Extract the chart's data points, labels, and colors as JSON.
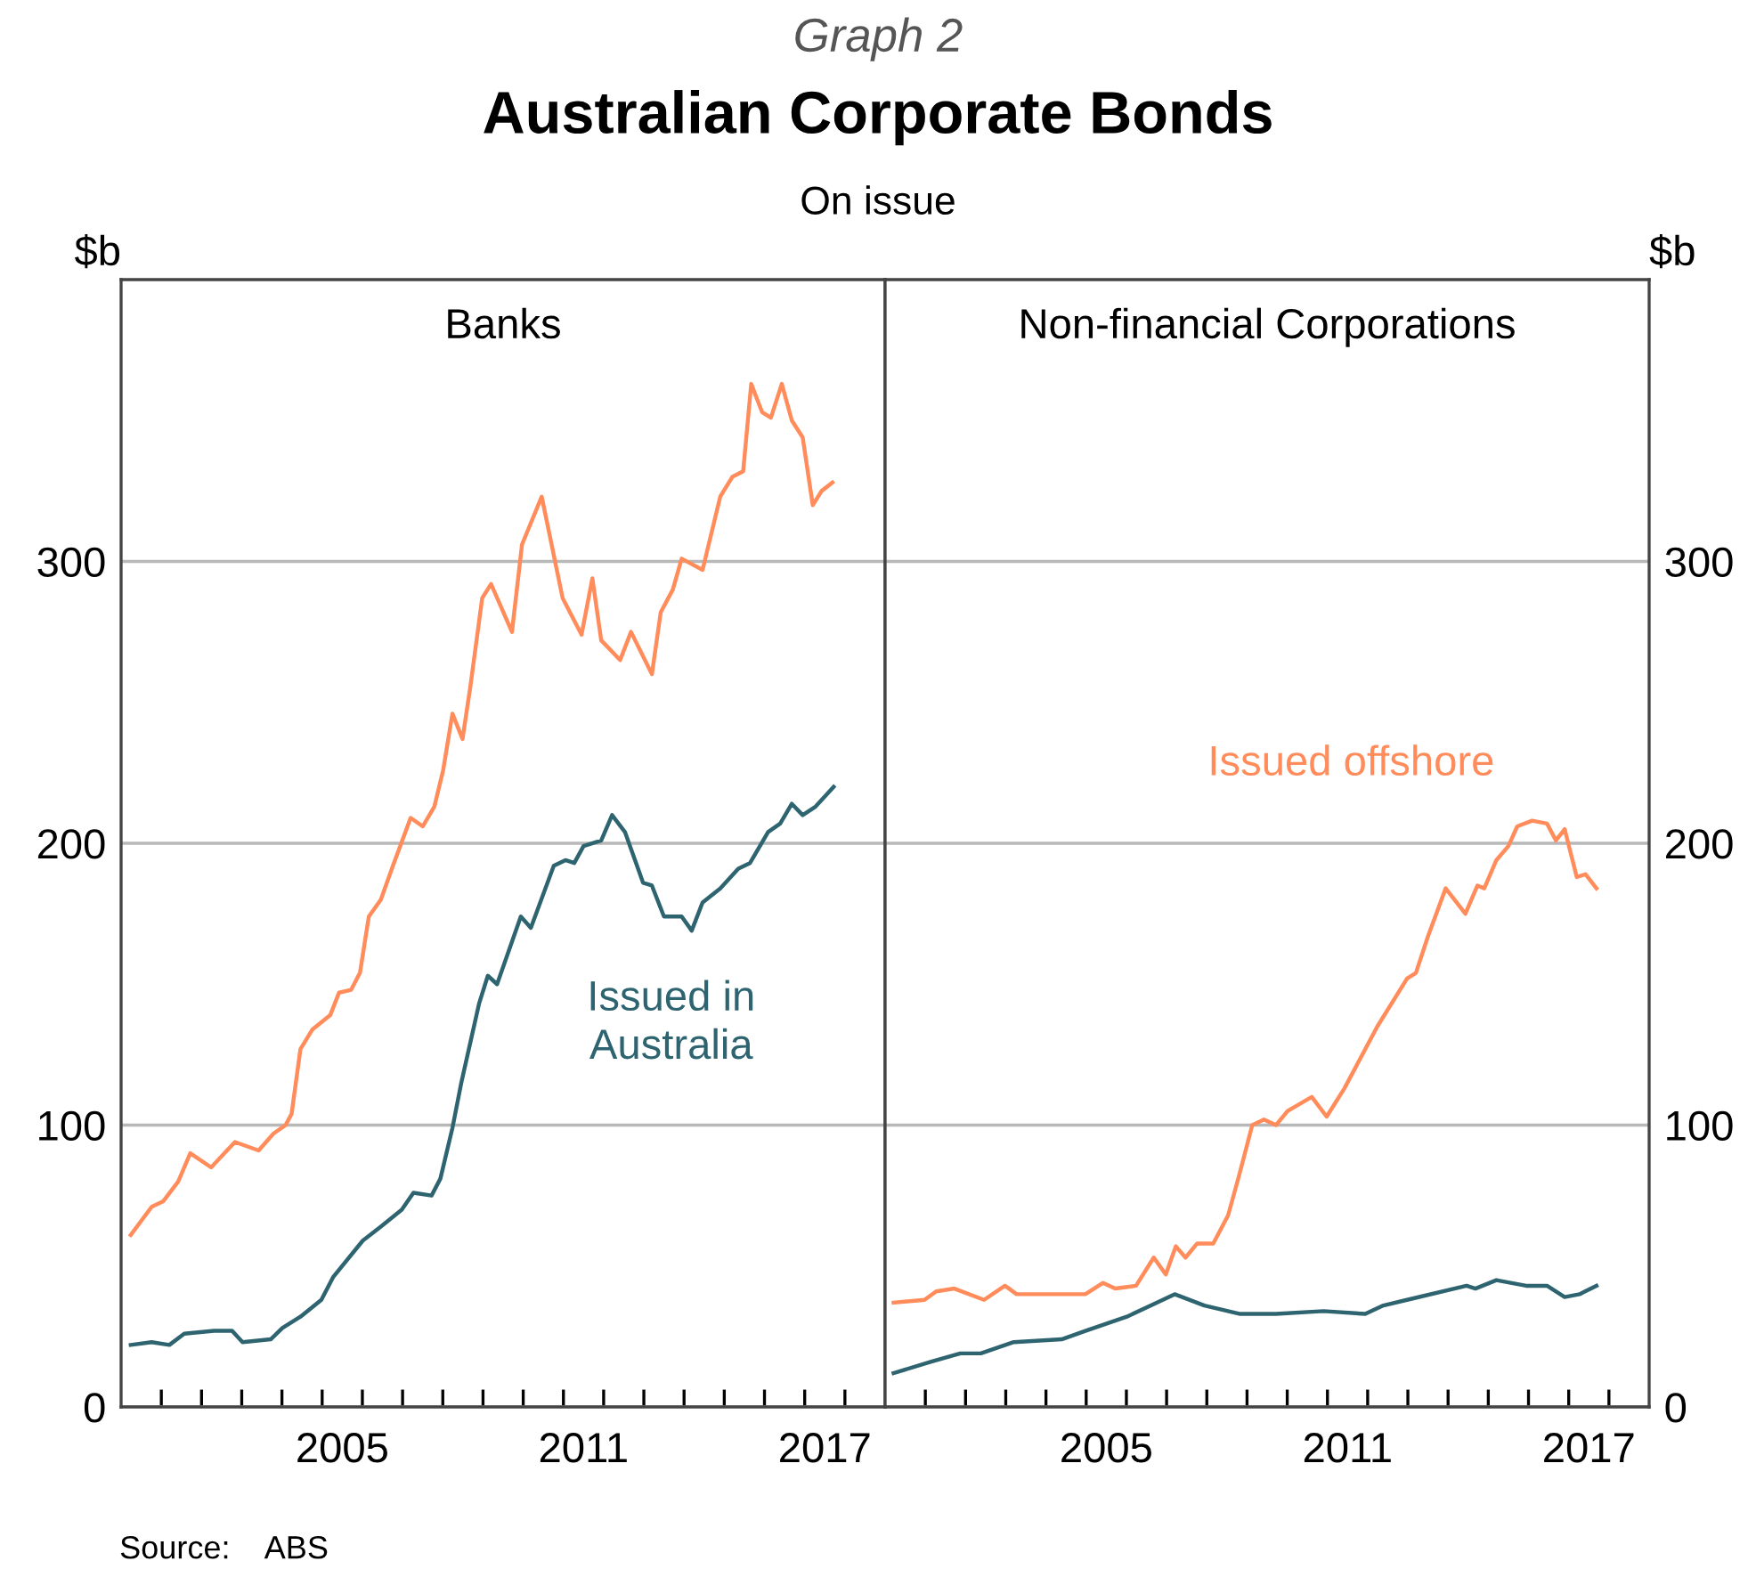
{
  "chart_data": [
    {
      "type": "line",
      "title": "Banks",
      "ylabel": "$b",
      "xlim": [
        2000,
        2019
      ],
      "ylim": [
        0,
        400
      ],
      "yticks": [
        0,
        100,
        200,
        300
      ],
      "xticks": [
        {
          "value": 2001,
          "label": null
        },
        {
          "value": 2002,
          "label": null
        },
        {
          "value": 2003,
          "label": null
        },
        {
          "value": 2004,
          "label": null
        },
        {
          "value": 2005,
          "label": null
        },
        {
          "value": 2005.5,
          "label": "2005"
        },
        {
          "value": 2006,
          "label": null
        },
        {
          "value": 2007,
          "label": null
        },
        {
          "value": 2008,
          "label": null
        },
        {
          "value": 2009,
          "label": null
        },
        {
          "value": 2010,
          "label": null
        },
        {
          "value": 2011,
          "label": null
        },
        {
          "value": 2011.5,
          "label": "2011"
        },
        {
          "value": 2012,
          "label": null
        },
        {
          "value": 2013,
          "label": null
        },
        {
          "value": 2014,
          "label": null
        },
        {
          "value": 2015,
          "label": null
        },
        {
          "value": 2016,
          "label": null
        },
        {
          "value": 2017,
          "label": null
        },
        {
          "value": 2017.5,
          "label": "2017"
        },
        {
          "value": 2018,
          "label": null
        }
      ],
      "grid": "y",
      "legend": false,
      "annotations": [
        "Graph 2",
        "Australian Corporate Bonds",
        "On issue",
        "Source:    ABS"
      ],
      "series": [
        {
          "color": "#ff8c5a",
          "x": [
            2000.24,
            2000.76,
            2001.05,
            2001.42,
            2001.72,
            2002.24,
            2002.83,
            2003.42,
            2003.79,
            2004.09,
            2004.24,
            2004.46,
            2004.76,
            2005.2,
            2005.42,
            2005.72,
            2005.94,
            2006.16,
            2006.46,
            2006.76,
            2007.2,
            2007.5,
            2007.79,
            2008.01,
            2008.24,
            2008.49,
            2008.68,
            2008.98,
            2009.2,
            2009.72,
            2009.97,
            2010.46,
            2010.98,
            2011.45,
            2011.72,
            2011.94,
            2012.41,
            2012.68,
            2013.2,
            2013.42,
            2013.72,
            2013.94,
            2014.46,
            2014.9,
            2015.2,
            2015.47,
            2015.67,
            2015.94,
            2016.16,
            2016.43,
            2016.68,
            2016.95,
            2017.2,
            2017.42,
            2017.69
          ],
          "values": [
            61,
            71,
            73,
            80,
            90,
            85,
            94,
            91,
            97,
            100,
            104,
            127,
            134,
            139,
            147,
            148,
            154,
            174,
            180,
            192,
            209,
            206,
            213,
            226,
            246,
            237,
            255,
            287,
            292,
            275,
            306,
            323,
            287,
            274,
            294,
            272,
            265,
            275,
            260,
            282,
            290,
            301,
            297,
            323,
            330,
            332,
            363,
            353,
            351,
            363,
            350,
            344,
            320,
            325,
            328
          ]
        },
        {
          "name": "Issued in\nAustralia",
          "color": "#2e6470",
          "x": [
            2000.24,
            2000.76,
            2001.2,
            2001.57,
            2002.31,
            2002.76,
            2003.02,
            2003.72,
            2004.01,
            2004.46,
            2004.98,
            2005.27,
            2006.01,
            2006.46,
            2006.98,
            2007.27,
            2007.72,
            2007.94,
            2008.24,
            2008.46,
            2008.9,
            2009.12,
            2009.35,
            2009.94,
            2010.19,
            2010.76,
            2011.05,
            2011.27,
            2011.5,
            2011.94,
            2012.21,
            2012.53,
            2012.98,
            2013.2,
            2013.5,
            2013.94,
            2014.19,
            2014.46,
            2014.9,
            2015.35,
            2015.64,
            2016.09,
            2016.39,
            2016.68,
            2016.95,
            2017.27,
            2017.72
          ],
          "values": [
            22,
            23,
            22,
            26,
            27,
            27,
            23,
            24,
            28,
            32,
            38,
            46,
            59,
            64,
            70,
            76,
            75,
            81,
            99,
            115,
            143,
            153,
            150,
            174,
            170,
            192,
            194,
            193,
            199,
            201,
            210,
            204,
            186,
            185,
            174,
            174,
            169,
            179,
            184,
            191,
            193,
            204,
            207,
            214,
            210,
            213,
            220
          ]
        }
      ]
    },
    {
      "type": "line",
      "title": "Non-financial Corporations",
      "ylabel": "$b",
      "xlim": [
        2000,
        2019
      ],
      "ylim": [
        0,
        400
      ],
      "yticks": [
        0,
        100,
        200,
        300
      ],
      "xticks": [
        {
          "value": 2001,
          "label": null
        },
        {
          "value": 2002,
          "label": null
        },
        {
          "value": 2003,
          "label": null
        },
        {
          "value": 2004,
          "label": null
        },
        {
          "value": 2005,
          "label": null
        },
        {
          "value": 2005.5,
          "label": "2005"
        },
        {
          "value": 2006,
          "label": null
        },
        {
          "value": 2007,
          "label": null
        },
        {
          "value": 2008,
          "label": null
        },
        {
          "value": 2009,
          "label": null
        },
        {
          "value": 2010,
          "label": null
        },
        {
          "value": 2011,
          "label": null
        },
        {
          "value": 2011.5,
          "label": "2011"
        },
        {
          "value": 2012,
          "label": null
        },
        {
          "value": 2013,
          "label": null
        },
        {
          "value": 2014,
          "label": null
        },
        {
          "value": 2015,
          "label": null
        },
        {
          "value": 2016,
          "label": null
        },
        {
          "value": 2017,
          "label": null
        },
        {
          "value": 2017.5,
          "label": "2017"
        },
        {
          "value": 2018,
          "label": null
        }
      ],
      "grid": "y",
      "legend": false,
      "series": [
        {
          "name": "Issued offshore",
          "color": "#ff8c5a",
          "x": [
            2000.21,
            2000.98,
            2001.27,
            2001.72,
            2002.46,
            2002.98,
            2003.27,
            2004.09,
            2004.98,
            2005.42,
            2005.72,
            2006.24,
            2006.68,
            2006.98,
            2007.23,
            2007.47,
            2007.76,
            2008.16,
            2008.53,
            2008.8,
            2009.13,
            2009.42,
            2009.72,
            2010.01,
            2010.61,
            2010.98,
            2011.42,
            2012.24,
            2012.98,
            2013.2,
            2013.5,
            2013.94,
            2014.43,
            2014.73,
            2014.9,
            2015.2,
            2015.5,
            2015.72,
            2016.09,
            2016.46,
            2016.68,
            2016.9,
            2017.2,
            2017.42,
            2017.69
          ],
          "values": [
            37,
            38,
            41,
            42,
            38,
            43,
            40,
            40,
            40,
            44,
            42,
            43,
            53,
            47,
            57,
            53,
            58,
            58,
            68,
            82,
            100,
            102,
            100,
            105,
            110,
            103,
            113,
            135,
            152,
            154,
            167,
            184,
            175,
            185,
            184,
            194,
            199,
            206,
            208,
            207,
            201,
            205,
            188,
            189,
            184
          ]
        },
        {
          "color": "#2e6470",
          "x": [
            2000.21,
            2001.13,
            2001.87,
            2002.38,
            2003.2,
            2004.39,
            2004.98,
            2006.01,
            2006.61,
            2007.2,
            2007.94,
            2008.83,
            2009.72,
            2010.9,
            2011.94,
            2012.39,
            2012.98,
            2014.46,
            2014.68,
            2015.2,
            2015.94,
            2016.46,
            2016.9,
            2017.27,
            2017.69
          ],
          "values": [
            12,
            16,
            19,
            19,
            23,
            24,
            27,
            32,
            36,
            40,
            36,
            33,
            33,
            34,
            33,
            36,
            38,
            43,
            42,
            45,
            43,
            43,
            39,
            40,
            43
          ]
        }
      ]
    }
  ]
}
